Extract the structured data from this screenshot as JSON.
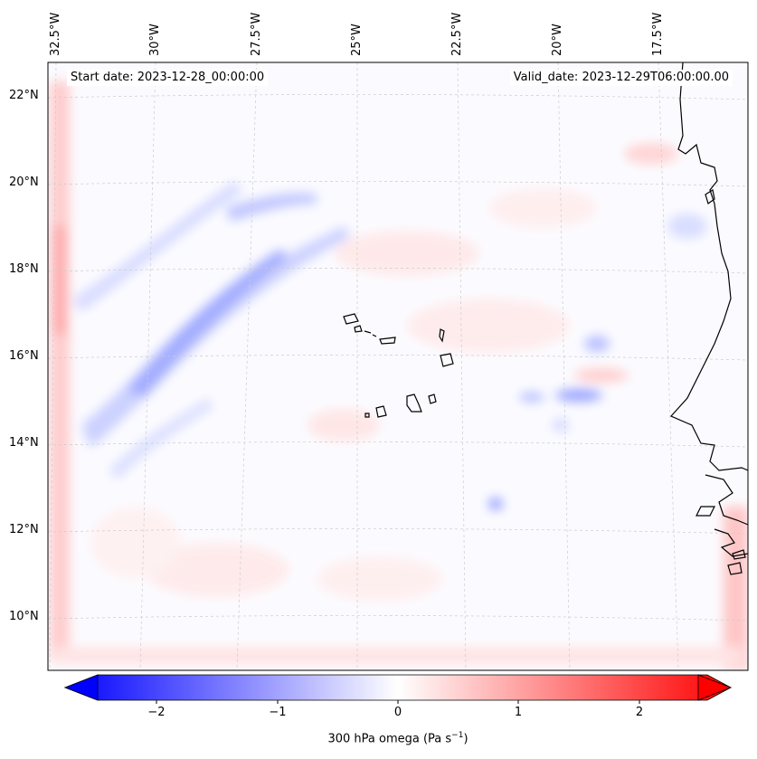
{
  "map": {
    "start_date": "Start date: 2023-12-28_00:00:00",
    "valid_date": "Valid_date: 2023-12-29T06:00:00.00",
    "lon_labels": [
      "32.5°W",
      "30°W",
      "27.5°W",
      "25°W",
      "22.5°W",
      "20°W",
      "17.5°W"
    ],
    "lat_labels": [
      "22°N",
      "20°N",
      "18°N",
      "16°N",
      "14°N",
      "12°N",
      "10°N"
    ]
  },
  "colorbar": {
    "ticks": [
      "−2",
      "−1",
      "0",
      "1",
      "2"
    ],
    "title": "300 hPa omega (Pa s",
    "title_sup": "−1",
    "title_end": ")",
    "min_color": "#0000ff",
    "mid_color": "#ffffff",
    "max_color": "#ff0000"
  },
  "chart_data": {
    "type": "heatmap",
    "title": "300 hPa omega",
    "variable": "300 hPa omega (Pa s−1)",
    "colormap": "bwr",
    "vmin": -2.5,
    "vmax": 2.5,
    "extend": "both",
    "lon_range": [
      -33,
      -15
    ],
    "lat_range": [
      9,
      23
    ],
    "colorbar_ticks": [
      -2,
      -1,
      0,
      1,
      2
    ]
  }
}
